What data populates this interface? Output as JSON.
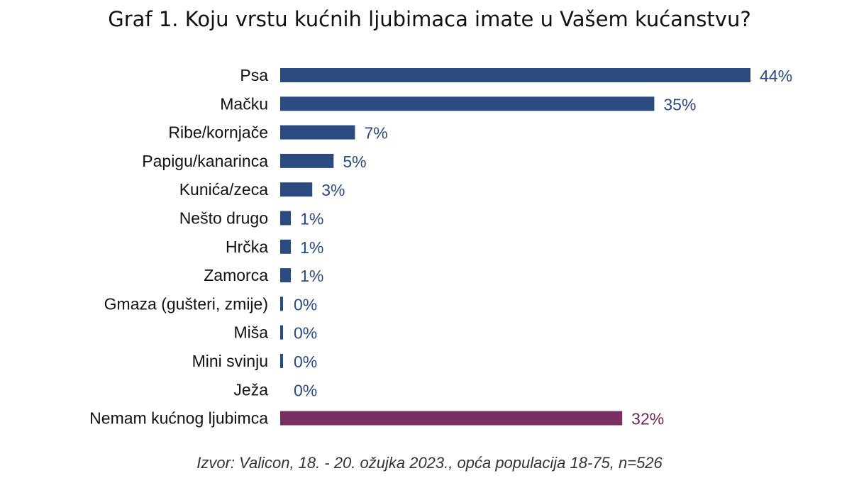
{
  "title": "Graf 1. Koju vrstu kućnih ljubimaca imate u Vašem kućanstvu?",
  "source": "Izvor: Valicon, 18. - 20. ožujka 2023., opća populacija 18-75, n=526",
  "colors": {
    "bar": "#2b4a80",
    "highlight_bar": "#7a2f63",
    "label_text": "#2b4a80",
    "highlight_text": "#6b2a5a",
    "category_text": "#111111"
  },
  "chart_data": {
    "type": "bar",
    "orientation": "horizontal",
    "categories": [
      "Psa",
      "Mačku",
      "Ribe/kornjače",
      "Papigu/kanarinca",
      "Kunića/zeca",
      "Nešto drugo",
      "Hrčka",
      "Zamorca",
      "Gmaza (gušteri, zmije)",
      "Miša",
      "Mini svinju",
      "Ježa",
      "Nemam kućnog ljubimca"
    ],
    "values": [
      44,
      35,
      7,
      5,
      3,
      1,
      1,
      1,
      0.3,
      0.2,
      0.2,
      0,
      32
    ],
    "data_labels": [
      "44%",
      "35%",
      "7%",
      "5%",
      "3%",
      "1%",
      "1%",
      "1%",
      "0%",
      "0%",
      "0%",
      "0%",
      "32%"
    ],
    "highlight": [
      "Nemam kućnog ljubimca"
    ],
    "unit": "%",
    "xlim": [
      0,
      44
    ],
    "grid": false,
    "legend": "none"
  }
}
